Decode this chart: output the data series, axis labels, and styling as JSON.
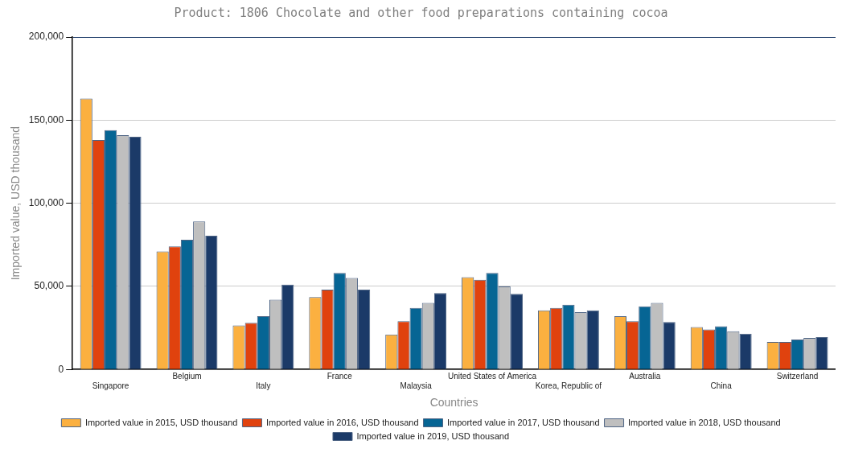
{
  "chart_data": {
    "type": "bar",
    "title": "Product: 1806 Chocolate and other food preparations containing cocoa",
    "xlabel": "Countries",
    "ylabel": "Imported value, USD thousand",
    "categories": [
      "Singapore",
      "Belgium",
      "Italy",
      "France",
      "Malaysia",
      "United States of America",
      "Korea, Republic of",
      "Australia",
      "China",
      "Switzerland"
    ],
    "series": [
      {
        "name": "Imported value in 2015, USD thousand",
        "color": "#fbb040",
        "values": [
          163000,
          71000,
          26500,
          43500,
          21000,
          55500,
          35500,
          32000,
          25500,
          16500
        ]
      },
      {
        "name": "Imported value in 2016, USD thousand",
        "color": "#e0420e",
        "values": [
          138000,
          74000,
          28000,
          48000,
          29000,
          54000,
          37000,
          29000,
          24000,
          16500
        ]
      },
      {
        "name": "Imported value in 2017, USD thousand",
        "color": "#066594",
        "values": [
          144000,
          78000,
          32000,
          58000,
          37000,
          58000,
          39000,
          38000,
          26000,
          18000
        ]
      },
      {
        "name": "Imported value in 2018, USD thousand",
        "color": "#bfbfbf",
        "values": [
          141000,
          89000,
          42000,
          55000,
          40000,
          50000,
          34500,
          40000,
          23000,
          19000
        ]
      },
      {
        "name": "Imported value in 2019, USD thousand",
        "color": "#1b3a68",
        "values": [
          140000,
          80500,
          51000,
          48000,
          46000,
          45500,
          35500,
          28500,
          21500,
          19500
        ]
      }
    ],
    "ylim": [
      0,
      200000
    ],
    "yticks": [
      {
        "value": 0,
        "label": "0"
      },
      {
        "value": 50000,
        "label": "50,000"
      },
      {
        "value": 100000,
        "label": "100,000"
      },
      {
        "value": 150000,
        "label": "150,000"
      },
      {
        "value": 200000,
        "label": "200,000"
      }
    ],
    "grid": "y",
    "legend": "bottom"
  }
}
